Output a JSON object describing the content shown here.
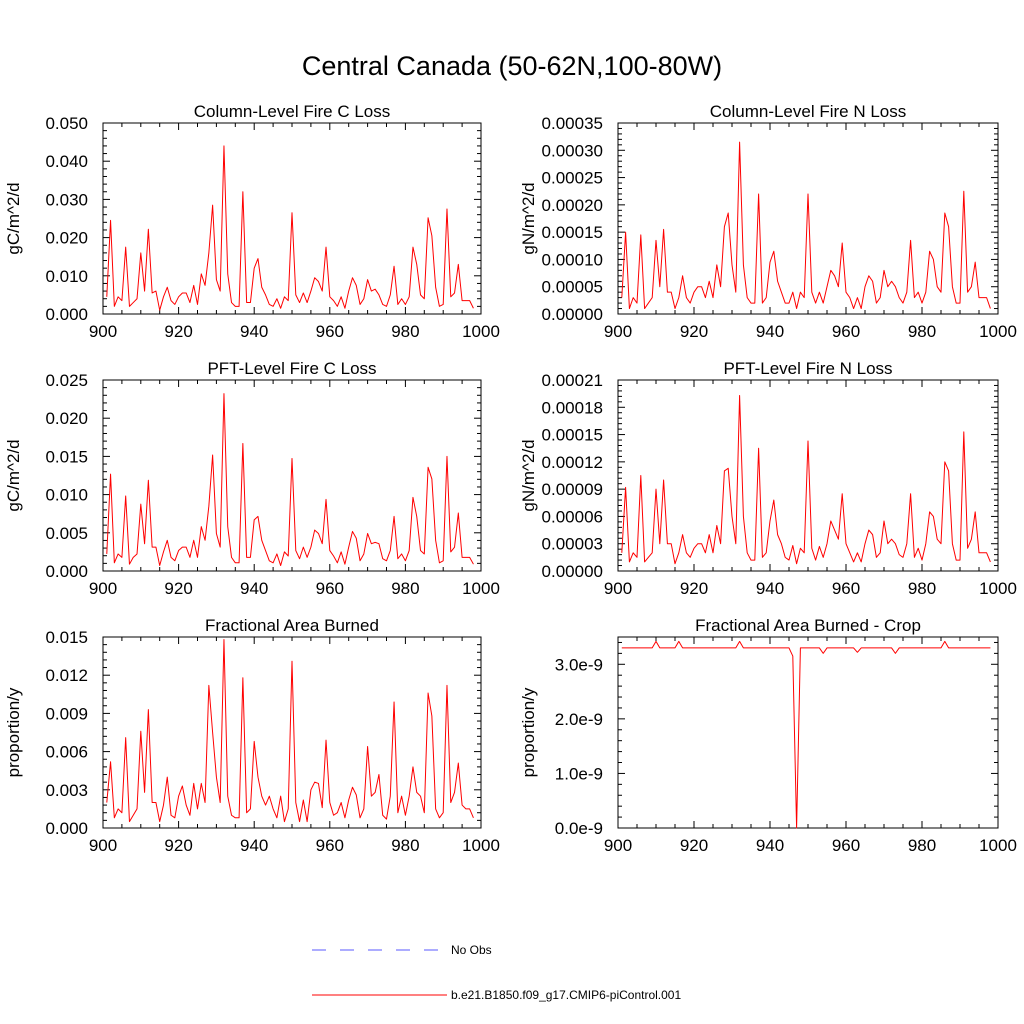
{
  "figure": {
    "title": "Central Canada (50-62N,100-80W)"
  },
  "legend": {
    "entries": [
      {
        "label": "No Obs",
        "color": "#5a5aff",
        "style": "dashed"
      },
      {
        "label": "b.e21.B1850.f09_g17.CMIP6-piControl.001",
        "color": "#ff0000",
        "style": "solid"
      }
    ]
  },
  "chart_data": [
    {
      "type": "line",
      "title": "Column-Level Fire C Loss",
      "ylabel": "gC/m^2/d",
      "xlabel": "",
      "xlim": [
        900,
        1000
      ],
      "ylim": [
        0,
        0.05
      ],
      "xticks": [
        "900",
        "920",
        "940",
        "960",
        "980",
        "1000"
      ],
      "yticks": [
        "0.000",
        "0.010",
        "0.020",
        "0.030",
        "0.040",
        "0.050"
      ],
      "series": [
        {
          "color": "#ff0000",
          "x_start": 901,
          "values": [
            0.0045,
            0.0245,
            0.002,
            0.0045,
            0.0035,
            0.0175,
            0.002,
            0.003,
            0.004,
            0.016,
            0.006,
            0.0222,
            0.0055,
            0.006,
            0.001,
            0.0045,
            0.007,
            0.0035,
            0.0025,
            0.0045,
            0.0055,
            0.0055,
            0.003,
            0.0075,
            0.0025,
            0.0105,
            0.0075,
            0.016,
            0.0285,
            0.009,
            0.006,
            0.044,
            0.0105,
            0.003,
            0.002,
            0.002,
            0.032,
            0.003,
            0.003,
            0.012,
            0.0145,
            0.007,
            0.005,
            0.0025,
            0.002,
            0.004,
            0.0015,
            0.0045,
            0.0035,
            0.0265,
            0.005,
            0.003,
            0.0055,
            0.003,
            0.006,
            0.0095,
            0.0085,
            0.006,
            0.0175,
            0.0045,
            0.0035,
            0.002,
            0.0045,
            0.0015,
            0.006,
            0.0095,
            0.0075,
            0.0025,
            0.004,
            0.009,
            0.006,
            0.0065,
            0.005,
            0.0025,
            0.002,
            0.005,
            0.0125,
            0.0025,
            0.004,
            0.0025,
            0.0045,
            0.0175,
            0.013,
            0.005,
            0.004,
            0.0252,
            0.0205,
            0.007,
            0.002,
            0.0025,
            0.0275,
            0.0045,
            0.0055,
            0.013,
            0.0035,
            0.0035,
            0.0035,
            0.0015
          ]
        }
      ]
    },
    {
      "type": "line",
      "title": "Column-Level Fire N Loss",
      "ylabel": "gN/m^2/d",
      "xlabel": "",
      "xlim": [
        900,
        1000
      ],
      "ylim": [
        0,
        0.00035
      ],
      "xticks": [
        "900",
        "920",
        "940",
        "960",
        "980",
        "1000"
      ],
      "yticks": [
        "0.00000",
        "0.00005",
        "0.00010",
        "0.00015",
        "0.00020",
        "0.00025",
        "0.00030",
        "0.00035"
      ],
      "series": [
        {
          "color": "#ff0000",
          "x_start": 901,
          "values": [
            3e-05,
            0.00015,
            1e-05,
            3e-05,
            2e-05,
            0.000145,
            1e-05,
            2e-05,
            3e-05,
            0.000135,
            5e-05,
            0.000155,
            4e-05,
            4e-05,
            1e-05,
            3e-05,
            7e-05,
            3e-05,
            2e-05,
            4e-05,
            5e-05,
            5e-05,
            3e-05,
            6e-05,
            3e-05,
            9e-05,
            5e-05,
            0.00016,
            0.000185,
            9e-05,
            4e-05,
            0.000315,
            9e-05,
            3e-05,
            2e-05,
            2e-05,
            0.00022,
            2e-05,
            3e-05,
            9.5e-05,
            0.000115,
            6e-05,
            4e-05,
            2e-05,
            2e-05,
            4e-05,
            1e-05,
            4e-05,
            3e-05,
            0.00022,
            4e-05,
            2e-05,
            4e-05,
            2e-05,
            5e-05,
            8e-05,
            7e-05,
            5e-05,
            0.00013,
            4e-05,
            3e-05,
            1e-05,
            3e-05,
            1e-05,
            5e-05,
            7e-05,
            6e-05,
            2e-05,
            3e-05,
            8e-05,
            5e-05,
            6e-05,
            5e-05,
            3e-05,
            2e-05,
            4e-05,
            0.000135,
            3e-05,
            4e-05,
            2e-05,
            4e-05,
            0.000115,
            0.0001,
            5e-05,
            4e-05,
            0.000185,
            0.00016,
            5e-05,
            2e-05,
            2e-05,
            0.000225,
            4e-05,
            5e-05,
            9.5e-05,
            3e-05,
            3e-05,
            3e-05,
            1e-05
          ]
        }
      ]
    },
    {
      "type": "line",
      "title": "PFT-Level Fire C Loss",
      "ylabel": "gC/m^2/d",
      "xlabel": "",
      "xlim": [
        900,
        1000
      ],
      "ylim": [
        0,
        0.028
      ],
      "xticks": [
        "900",
        "920",
        "940",
        "960",
        "980",
        "1000"
      ],
      "yticks": [
        "0.000",
        "0.005",
        "0.010",
        "0.015",
        "0.020",
        "0.025"
      ],
      "series": [
        {
          "color": "#ff0000",
          "x_start": 901,
          "values": [
            0.0025,
            0.0142,
            0.0012,
            0.0025,
            0.002,
            0.011,
            0.001,
            0.002,
            0.0025,
            0.0098,
            0.004,
            0.0133,
            0.0035,
            0.0035,
            0.0008,
            0.0028,
            0.0045,
            0.002,
            0.0015,
            0.003,
            0.0035,
            0.0035,
            0.002,
            0.0045,
            0.002,
            0.0065,
            0.0045,
            0.0095,
            0.017,
            0.0055,
            0.0035,
            0.026,
            0.0065,
            0.002,
            0.0012,
            0.0012,
            0.0187,
            0.002,
            0.002,
            0.0075,
            0.008,
            0.0045,
            0.003,
            0.0015,
            0.0012,
            0.0025,
            0.0008,
            0.0028,
            0.0022,
            0.0165,
            0.003,
            0.0018,
            0.0035,
            0.002,
            0.0035,
            0.006,
            0.0055,
            0.004,
            0.0105,
            0.003,
            0.0022,
            0.0012,
            0.0028,
            0.001,
            0.0035,
            0.0058,
            0.0048,
            0.0015,
            0.0025,
            0.0055,
            0.004,
            0.0042,
            0.004,
            0.0018,
            0.0015,
            0.003,
            0.008,
            0.0018,
            0.0025,
            0.0015,
            0.003,
            0.0108,
            0.008,
            0.003,
            0.0025,
            0.0152,
            0.0135,
            0.0045,
            0.0012,
            0.0015,
            0.0168,
            0.0028,
            0.0035,
            0.0085,
            0.002,
            0.002,
            0.002,
            0.001
          ]
        }
      ]
    },
    {
      "type": "line",
      "title": "PFT-Level Fire N Loss",
      "ylabel": "gN/m^2/d",
      "xlabel": "",
      "xlim": [
        900,
        1000
      ],
      "ylim": [
        0,
        0.00021
      ],
      "xticks": [
        "900",
        "920",
        "940",
        "960",
        "980",
        "1000"
      ],
      "yticks": [
        "0.00000",
        "0.00003",
        "0.00006",
        "0.00009",
        "0.00012",
        "0.00015",
        "0.00018",
        "0.00021"
      ],
      "series": [
        {
          "color": "#ff0000",
          "x_start": 901,
          "values": [
            2e-05,
            9.2e-05,
            1e-05,
            2e-05,
            1.5e-05,
            0.000105,
            1e-05,
            1.5e-05,
            2e-05,
            9e-05,
            3e-05,
            0.0001,
            3e-05,
            3e-05,
            8e-06,
            2e-05,
            4e-05,
            2e-05,
            1.5e-05,
            2.5e-05,
            3e-05,
            3e-05,
            2e-05,
            4e-05,
            2e-05,
            5e-05,
            3e-05,
            0.00011,
            0.000113,
            6e-05,
            3e-05,
            0.000193,
            6e-05,
            2e-05,
            1.2e-05,
            1.2e-05,
            0.000135,
            1.5e-05,
            2e-05,
            5.5e-05,
            7.8e-05,
            4e-05,
            3e-05,
            1.5e-05,
            1.2e-05,
            2.8e-05,
            8e-06,
            2.5e-05,
            2e-05,
            0.000143,
            2.5e-05,
            1.2e-05,
            2.7e-05,
            1.5e-05,
            3e-05,
            5.5e-05,
            4.5e-05,
            3.5e-05,
            8.5e-05,
            3e-05,
            2e-05,
            1e-05,
            2e-05,
            1e-05,
            3e-05,
            4.5e-05,
            4e-05,
            1.5e-05,
            2e-05,
            5.5e-05,
            3e-05,
            3.5e-05,
            3e-05,
            1.8e-05,
            1.5e-05,
            3e-05,
            8.5e-05,
            1.5e-05,
            2.5e-05,
            1.2e-05,
            3e-05,
            6.5e-05,
            6e-05,
            3.5e-05,
            3e-05,
            0.00012,
            0.00011,
            3e-05,
            1.2e-05,
            1.2e-05,
            0.000153,
            2.5e-05,
            3.5e-05,
            6.5e-05,
            2e-05,
            2e-05,
            2e-05,
            1e-05
          ]
        }
      ]
    },
    {
      "type": "line",
      "title": "Fractional Area Burned",
      "ylabel": "proportion/y",
      "xlabel": "",
      "xlim": [
        900,
        1000
      ],
      "ylim": [
        0,
        0.015
      ],
      "xticks": [
        "900",
        "920",
        "940",
        "960",
        "980",
        "1000"
      ],
      "yticks": [
        "0.000",
        "0.003",
        "0.006",
        "0.009",
        "0.012",
        "0.015"
      ],
      "series": [
        {
          "color": "#ff0000",
          "x_start": 901,
          "values": [
            0.002,
            0.0052,
            0.0008,
            0.0015,
            0.0012,
            0.0071,
            0.0005,
            0.001,
            0.0015,
            0.0076,
            0.0028,
            0.0093,
            0.002,
            0.002,
            0.0005,
            0.0018,
            0.004,
            0.001,
            0.0008,
            0.0025,
            0.0033,
            0.0018,
            0.001,
            0.0035,
            0.0015,
            0.0035,
            0.002,
            0.0112,
            0.0075,
            0.004,
            0.002,
            0.0148,
            0.0025,
            0.001,
            0.0008,
            0.0008,
            0.0118,
            0.0012,
            0.0015,
            0.0068,
            0.004,
            0.0025,
            0.0018,
            0.0025,
            0.0015,
            0.0008,
            0.0025,
            0.0005,
            0.0015,
            0.0131,
            0.002,
            0.0005,
            0.0022,
            0.0005,
            0.003,
            0.0036,
            0.0035,
            0.0016,
            0.0069,
            0.002,
            0.001,
            0.0012,
            0.002,
            0.0008,
            0.0022,
            0.0032,
            0.0026,
            0.0008,
            0.0015,
            0.0064,
            0.0025,
            0.0028,
            0.0042,
            0.001,
            0.0007,
            0.0025,
            0.0099,
            0.0012,
            0.0025,
            0.001,
            0.0025,
            0.0048,
            0.0028,
            0.0025,
            0.0012,
            0.0106,
            0.0088,
            0.0015,
            0.0008,
            0.0012,
            0.0112,
            0.002,
            0.0028,
            0.0051,
            0.0018,
            0.0015,
            0.0015,
            0.0008
          ]
        }
      ]
    },
    {
      "type": "line",
      "title": "Fractional Area Burned - Crop",
      "ylabel": "proportion/y",
      "xlabel": "",
      "xlim": [
        900,
        1000
      ],
      "ylim": [
        0,
        3.5e-09
      ],
      "xticks": [
        "900",
        "920",
        "940",
        "960",
        "980",
        "1000"
      ],
      "yticks": [
        "0.0e-9",
        "1.0e-9",
        "2.0e-9",
        "3.0e-9"
      ],
      "ytick_values": [
        0,
        1e-09,
        2e-09,
        3e-09
      ],
      "series": [
        {
          "color": "#ff0000",
          "x_start": 901,
          "values": [
            3.3e-09,
            3.3e-09,
            3.3e-09,
            3.3e-09,
            3.3e-09,
            3.3e-09,
            3.3e-09,
            3.3e-09,
            3.3e-09,
            3.42e-09,
            3.3e-09,
            3.3e-09,
            3.3e-09,
            3.3e-09,
            3.3e-09,
            3.42e-09,
            3.3e-09,
            3.3e-09,
            3.3e-09,
            3.3e-09,
            3.3e-09,
            3.3e-09,
            3.3e-09,
            3.3e-09,
            3.3e-09,
            3.3e-09,
            3.3e-09,
            3.3e-09,
            3.3e-09,
            3.3e-09,
            3.3e-09,
            3.42e-09,
            3.3e-09,
            3.3e-09,
            3.3e-09,
            3.3e-09,
            3.3e-09,
            3.3e-09,
            3.3e-09,
            3.3e-09,
            3.3e-09,
            3.3e-09,
            3.3e-09,
            3.3e-09,
            3.3e-09,
            3.15e-09,
            0.0,
            3.3e-09,
            3.3e-09,
            3.3e-09,
            3.3e-09,
            3.3e-09,
            3.3e-09,
            3.2e-09,
            3.3e-09,
            3.3e-09,
            3.3e-09,
            3.3e-09,
            3.3e-09,
            3.3e-09,
            3.3e-09,
            3.3e-09,
            3.22e-09,
            3.3e-09,
            3.3e-09,
            3.3e-09,
            3.3e-09,
            3.3e-09,
            3.3e-09,
            3.3e-09,
            3.3e-09,
            3.3e-09,
            3.2e-09,
            3.3e-09,
            3.3e-09,
            3.3e-09,
            3.3e-09,
            3.3e-09,
            3.3e-09,
            3.3e-09,
            3.3e-09,
            3.3e-09,
            3.3e-09,
            3.3e-09,
            3.3e-09,
            3.42e-09,
            3.3e-09,
            3.3e-09,
            3.3e-09,
            3.3e-09,
            3.3e-09,
            3.3e-09,
            3.3e-09,
            3.3e-09,
            3.3e-09,
            3.3e-09,
            3.3e-09,
            3.3e-09
          ]
        }
      ]
    }
  ]
}
